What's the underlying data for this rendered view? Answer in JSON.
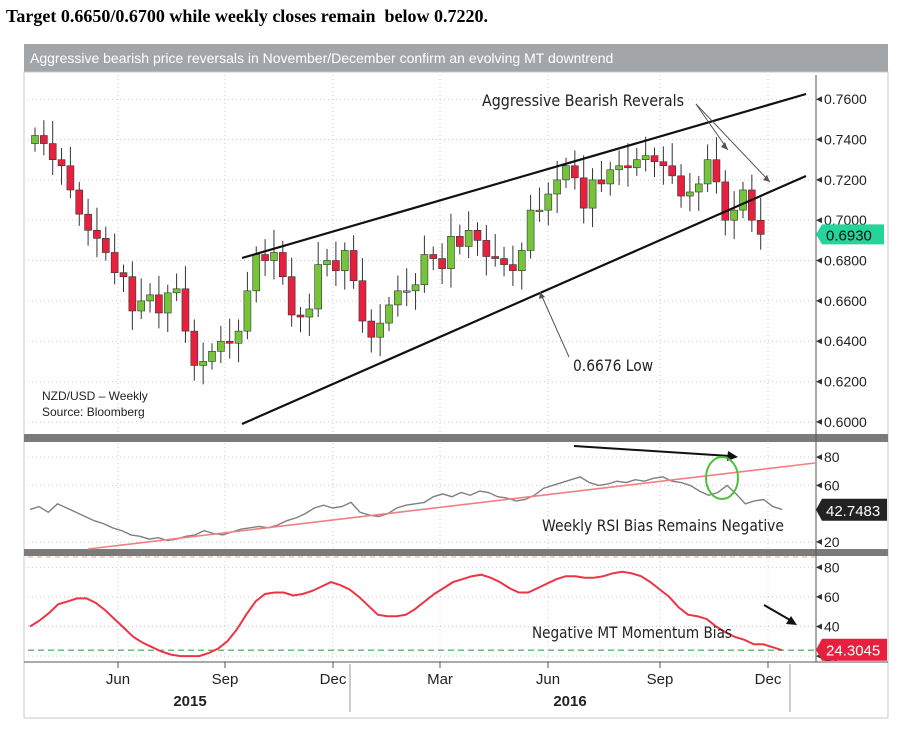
{
  "headline": "Target 0.6650/0.6700 while weekly closes remain  below 0.7220.",
  "banner": "Aggressive bearish price reversals in November/December confirm an evolving MT downtrend",
  "chart_data": [
    {
      "type": "candlestick",
      "title": "NZD/USD – Weekly",
      "source": "Source: Bloomberg",
      "ylim": [
        0.595,
        0.772
      ],
      "yticks": [
        "0.7600",
        "0.7400",
        "0.7200",
        "0.7000",
        "0.6800",
        "0.6600",
        "0.6400",
        "0.6200",
        "0.6000"
      ],
      "ytick_values": [
        0.76,
        0.74,
        0.72,
        0.7,
        0.68,
        0.66,
        0.64,
        0.62,
        0.6
      ],
      "grid": true,
      "last_price": "0.6930",
      "annotations": [
        "Aggressive Bearish Reverals",
        "0.6676 Low"
      ],
      "closes": [
        0.742,
        0.738,
        0.73,
        0.727,
        0.715,
        0.703,
        0.695,
        0.691,
        0.684,
        0.674,
        0.672,
        0.655,
        0.66,
        0.663,
        0.654,
        0.664,
        0.666,
        0.645,
        0.628,
        0.63,
        0.635,
        0.64,
        0.639,
        0.645,
        0.665,
        0.683,
        0.68,
        0.684,
        0.672,
        0.653,
        0.652,
        0.656,
        0.678,
        0.68,
        0.675,
        0.685,
        0.67,
        0.65,
        0.642,
        0.649,
        0.658,
        0.665,
        0.665,
        0.668,
        0.683,
        0.681,
        0.676,
        0.692,
        0.687,
        0.695,
        0.69,
        0.682,
        0.681,
        0.678,
        0.675,
        0.685,
        0.705,
        0.705,
        0.713,
        0.72,
        0.727,
        0.721,
        0.706,
        0.72,
        0.718,
        0.725,
        0.727,
        0.726,
        0.73,
        0.732,
        0.729,
        0.727,
        0.722,
        0.712,
        0.714,
        0.718,
        0.73,
        0.719,
        0.7,
        0.705,
        0.715,
        0.7,
        0.693
      ]
    },
    {
      "type": "line",
      "title": "Weekly RSI Bias Remains Negative",
      "yticks": [
        "80",
        "60",
        "20"
      ],
      "ytick_values": [
        80,
        60,
        20
      ],
      "ylim": [
        15,
        90
      ],
      "last_value": "42.7483",
      "values": [
        43,
        45,
        41,
        47,
        44,
        41,
        38,
        35,
        33,
        30,
        28,
        25,
        24,
        22,
        23,
        21,
        22,
        24,
        25,
        28,
        26,
        25,
        27,
        29,
        30,
        31,
        30,
        32,
        35,
        37,
        40,
        44,
        46,
        44,
        45,
        48,
        41,
        39,
        38,
        40,
        44,
        46,
        47,
        48,
        52,
        54,
        52,
        55,
        53,
        56,
        55,
        52,
        51,
        49,
        50,
        53,
        58,
        60,
        62,
        64,
        66,
        62,
        60,
        61,
        63,
        62,
        64,
        63,
        65,
        66,
        63,
        62,
        60,
        56,
        53,
        55,
        60,
        54,
        47,
        49,
        50,
        45,
        43
      ]
    },
    {
      "type": "line",
      "title": "Negative MT Momentum Bias",
      "yticks": [
        "80",
        "60",
        "40",
        "20"
      ],
      "ytick_values": [
        80,
        60,
        40,
        20
      ],
      "ylim": [
        16,
        87
      ],
      "last_value": "24.3045",
      "values": [
        40,
        44,
        49,
        55,
        57,
        59,
        59,
        56,
        51,
        45,
        39,
        33,
        29,
        26,
        23,
        21,
        20,
        20,
        20,
        22,
        25,
        30,
        38,
        48,
        57,
        62,
        63,
        63,
        61,
        62,
        64,
        67,
        70,
        68,
        65,
        60,
        54,
        48,
        47,
        47,
        48,
        52,
        57,
        62,
        66,
        70,
        72,
        74,
        75,
        73,
        70,
        66,
        63,
        63,
        66,
        69,
        72,
        74,
        74,
        73,
        73,
        74,
        76,
        77,
        76,
        74,
        70,
        65,
        60,
        53,
        48,
        47,
        45,
        40,
        36,
        33,
        31,
        28,
        28,
        26,
        24
      ]
    }
  ],
  "xaxis": {
    "months": [
      "Jun",
      "Sep",
      "Dec",
      "Mar",
      "Jun",
      "Sep",
      "Dec"
    ],
    "years": [
      "2015",
      "2016"
    ]
  },
  "colors": {
    "up": "#76c43a",
    "down": "#e8203f",
    "rsi": "#7f7f7f",
    "momentum": "#ee3344",
    "trendline": "#f08080",
    "price_tag": "#26d39a",
    "momentum_tag": "#e8203f",
    "rsi_tag": "#222222",
    "ellipse": "#4cc13a",
    "dashed_green": "#3aa845",
    "dashed_red": "#f0a090"
  }
}
